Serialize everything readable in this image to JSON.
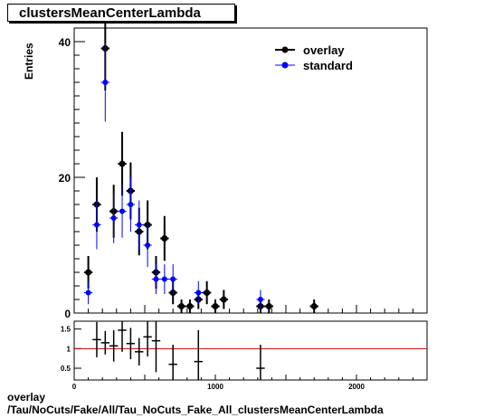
{
  "title": "clustersMeanCenterLambda",
  "footer": {
    "line1": "overlay",
    "line2": "/Tau/NoCuts/Fake/All/Tau_NoCuts_Fake_All_clustersMeanCenterLambda"
  },
  "colors": {
    "overlay": "#000000",
    "standard": "#0000ff",
    "ratio_line": "#cc0000"
  },
  "chart_data": [
    {
      "type": "scatter",
      "ylabel": "Entries",
      "xlim": [
        0,
        2500
      ],
      "ylim": [
        0,
        42
      ],
      "yticks": [
        0,
        20,
        40
      ],
      "legend_position": "top-right",
      "series": [
        {
          "name": "overlay",
          "x": [
            100,
            160,
            220,
            280,
            340,
            400,
            460,
            520,
            580,
            640,
            700,
            760,
            820,
            880,
            940,
            1000,
            1060,
            1320,
            1380,
            1700
          ],
          "y": [
            6,
            16,
            39,
            15,
            22,
            18,
            12,
            13,
            6,
            11,
            3,
            1,
            1,
            2,
            3,
            1,
            2,
            1,
            1,
            1
          ],
          "yerr": [
            2.4,
            4,
            6.2,
            3.9,
            4.7,
            4.2,
            3.5,
            3.6,
            2.4,
            3.3,
            1.7,
            1,
            1,
            1.4,
            1.7,
            1,
            1.4,
            1,
            1,
            1
          ]
        },
        {
          "name": "standard",
          "x": [
            100,
            160,
            220,
            280,
            340,
            400,
            460,
            520,
            580,
            640,
            700,
            880,
            1320
          ],
          "y": [
            3,
            13,
            34,
            14,
            15,
            16,
            13,
            10,
            5,
            5,
            5,
            3,
            2
          ],
          "yerr": [
            1.7,
            3.6,
            5.8,
            3.7,
            3.9,
            4,
            3.6,
            3.2,
            2.2,
            2.2,
            2.2,
            1.7,
            1.4
          ]
        }
      ]
    },
    {
      "type": "scatter",
      "xlim": [
        0,
        2500
      ],
      "ylim": [
        0.2,
        1.7
      ],
      "yticks": [
        0.5,
        1,
        1.5
      ],
      "xticks": [
        0,
        1000,
        2000
      ],
      "reference_line": 1,
      "series": [
        {
          "name": "ratio",
          "x": [
            160,
            220,
            280,
            340,
            400,
            460,
            520,
            580,
            700,
            880,
            1320
          ],
          "y": [
            1.23,
            1.15,
            1.07,
            1.47,
            1.13,
            0.92,
            1.3,
            1.2,
            0.6,
            0.67,
            0.5
          ],
          "yerr": [
            0.45,
            0.3,
            0.4,
            0.55,
            0.4,
            0.35,
            0.5,
            0.8,
            0.5,
            0.8,
            0.6
          ]
        }
      ]
    }
  ]
}
